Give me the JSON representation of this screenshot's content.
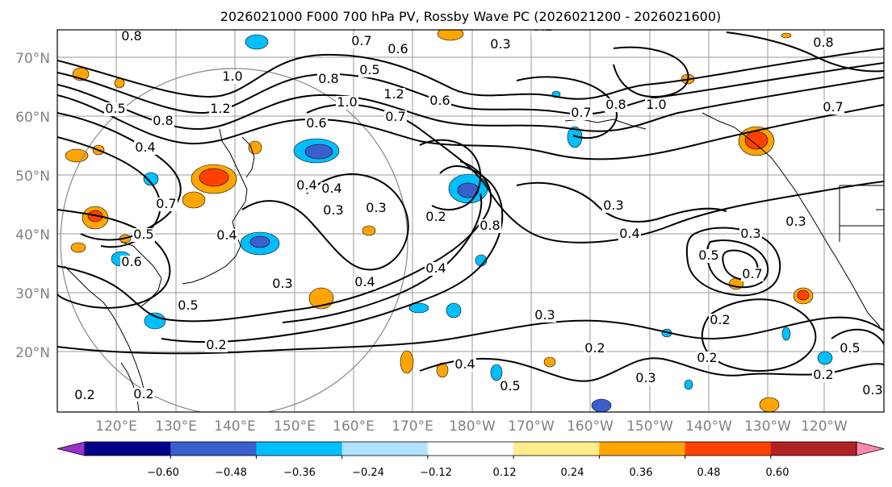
{
  "title": "2026021000 F000 700 hPa PV, Rossby Wave PC (2026021200 - 2026021600)",
  "latitude_labels": [
    "70°N",
    "60°N",
    "50°N",
    "40°N",
    "30°N",
    "20°N"
  ],
  "longitude_labels": [
    "120°E",
    "130°E",
    "140°E",
    "150°E",
    "160°E",
    "170°E",
    "180°W",
    "170°W",
    "160°W",
    "150°W",
    "140°W",
    "130°W",
    "120°W"
  ],
  "colorbar": {
    "colors": [
      "#9932CC",
      "#00008B",
      "#3A5FCD",
      "#00BFFF",
      "#B0E2FF",
      "#FFFFFF",
      "#FFEC8B",
      "#FFA500",
      "#FF4000",
      "#B22222",
      "#FF88AA"
    ],
    "tick_labels": [
      "−0.60",
      "−0.48",
      "−0.36",
      "−0.24",
      "−0.12",
      "0.12",
      "0.24",
      "0.36",
      "0.48",
      "0.60"
    ]
  },
  "contour_labels": [
    "0.8",
    "0.7",
    "0.6",
    "0.3",
    "0.2",
    "0.5",
    "0.8",
    "1.0",
    "1.2",
    "1.0",
    "0.5",
    "0.8",
    "0.4",
    "0.6",
    "0.7",
    "1.2",
    "0.6",
    "0.7",
    "0.8",
    "1.0",
    "0.4",
    "0.7",
    "0.4",
    "0.3",
    "0.3",
    "0.4",
    "0.2",
    "0.5",
    "0.6",
    "0.3",
    "0.8",
    "0.3",
    "0.4",
    "0.4",
    "0.5",
    "0.3",
    "0.4",
    "0.5",
    "0.7",
    "0.2",
    "0.3",
    "0.2",
    "0.3",
    "0.2",
    "0.4",
    "0.5",
    "0.5",
    "0.2",
    "0.2",
    "0.3",
    "0.2",
    "0.2",
    "0.8",
    "0.7",
    "0.3"
  ]
}
